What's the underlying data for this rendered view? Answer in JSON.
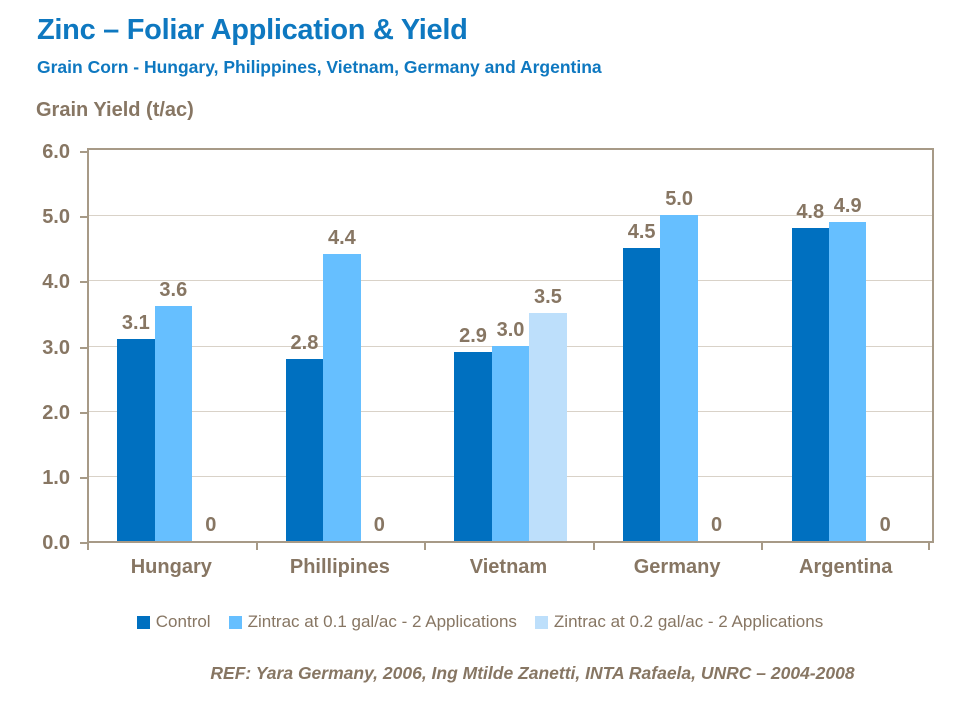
{
  "header": {
    "title": "Zinc – Foliar Application & Yield",
    "subtitle": "Grain Corn - Hungary, Philippines, Vietnam, Germany and Argentina"
  },
  "chart_data": {
    "type": "bar",
    "title": "Zinc – Foliar Application & Yield",
    "ylabel": "Grain Yield (t/ac)",
    "xlabel": "",
    "categories": [
      "Hungary",
      "Phillipines",
      "Vietnam",
      "Germany",
      "Argentina"
    ],
    "series": [
      {
        "name": "Control",
        "color": "#0070C0",
        "values": [
          3.1,
          2.8,
          2.9,
          4.5,
          4.8
        ]
      },
      {
        "name": "Zintrac at 0.1 gal/ac - 2 Applications",
        "color": "#66BFFF",
        "values": [
          3.6,
          4.4,
          3.0,
          5.0,
          4.9
        ]
      },
      {
        "name": "Zintrac at 0.2 gal/ac - 2 Applications",
        "color": "#BDDFFB",
        "values": [
          0,
          0,
          3.5,
          0,
          0
        ]
      }
    ],
    "data_labels": [
      [
        "3.1",
        "2.8",
        "2.9",
        "4.5",
        "4.8"
      ],
      [
        "3.6",
        "4.4",
        "3.0",
        "5.0",
        "4.9"
      ],
      [
        "0",
        "0",
        "3.5",
        "0",
        "0"
      ]
    ],
    "ylim": [
      0,
      6
    ],
    "yticks": [
      "0.0",
      "1.0",
      "2.0",
      "3.0",
      "4.0",
      "5.0",
      "6.0"
    ],
    "grid": true,
    "legend_position": "bottom"
  },
  "footer": {
    "ref": "REF: Yara Germany, 2006, Ing Mtilde Zanetti, INTA Rafaela, UNRC – 2004-2008"
  },
  "theme": {
    "title_color": "#0E78C0",
    "text_color": "#877663",
    "axis_color": "#A79A87",
    "gridline_color": "#D9D2C8"
  }
}
